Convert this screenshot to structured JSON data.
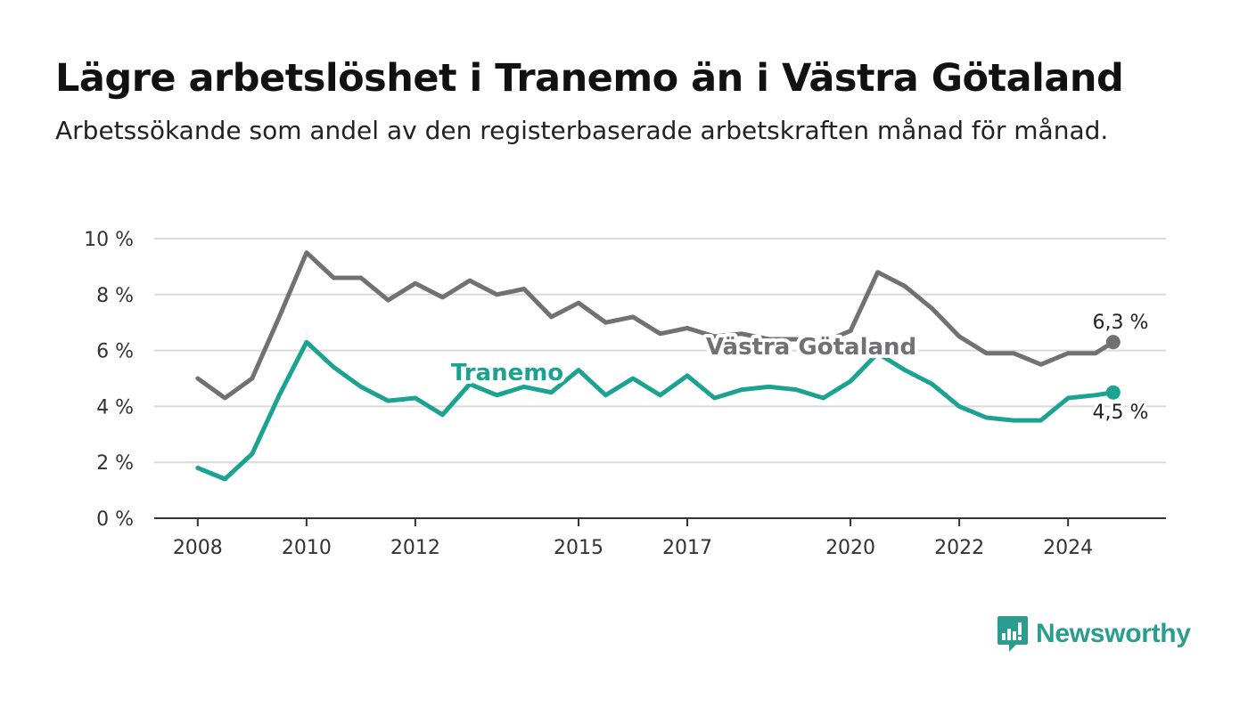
{
  "title": "Lägre arbetslöshet i Tranemo än i Västra Götaland",
  "subtitle": "Arbetssökande som andel av den registerbaserade arbetskraften månad för månad.",
  "brand": {
    "name": "Newsworthy",
    "color": "#2a9d8f",
    "icon": "newsworthy-bar-chart-icon"
  },
  "chart_data": {
    "type": "line",
    "x_unit": "year",
    "y_unit": "%",
    "ylim": [
      0,
      10
    ],
    "xlim": [
      2007.2,
      2025.8
    ],
    "grid": true,
    "y_ticks": [
      {
        "value": 0,
        "label": "0 %"
      },
      {
        "value": 2,
        "label": "2 %"
      },
      {
        "value": 4,
        "label": "4 %"
      },
      {
        "value": 6,
        "label": "6 %"
      },
      {
        "value": 8,
        "label": "8 %"
      },
      {
        "value": 10,
        "label": "10 %"
      }
    ],
    "x_ticks": [
      {
        "value": 2008,
        "label": "2008"
      },
      {
        "value": 2010,
        "label": "2010"
      },
      {
        "value": 2012,
        "label": "2012"
      },
      {
        "value": 2015,
        "label": "2015"
      },
      {
        "value": 2017,
        "label": "2017"
      },
      {
        "value": 2020,
        "label": "2020"
      },
      {
        "value": 2022,
        "label": "2022"
      },
      {
        "value": 2024,
        "label": "2024"
      }
    ],
    "x": [
      2008.0,
      2008.5,
      2009.0,
      2009.5,
      2010.0,
      2010.5,
      2011.0,
      2011.5,
      2012.0,
      2012.5,
      2013.0,
      2013.5,
      2014.0,
      2014.5,
      2015.0,
      2015.5,
      2016.0,
      2016.5,
      2017.0,
      2017.5,
      2018.0,
      2018.5,
      2019.0,
      2019.5,
      2020.0,
      2020.5,
      2021.0,
      2021.5,
      2022.0,
      2022.5,
      2023.0,
      2023.5,
      2024.0,
      2024.5,
      2024.83
    ],
    "series": [
      {
        "name": "Västra Götaland",
        "color": "#707075",
        "end_label": "6,3 %",
        "values": [
          5.0,
          4.3,
          5.0,
          7.2,
          9.5,
          8.6,
          8.6,
          7.8,
          8.4,
          7.9,
          8.5,
          8.0,
          8.2,
          7.2,
          7.7,
          7.0,
          7.2,
          6.6,
          6.8,
          6.5,
          6.6,
          6.4,
          6.4,
          6.3,
          6.7,
          8.8,
          8.3,
          7.5,
          6.5,
          5.9,
          5.9,
          5.5,
          5.9,
          5.9,
          6.3
        ]
      },
      {
        "name": "Tranemo",
        "color": "#1aa391",
        "end_label": "4,5 %",
        "values": [
          1.8,
          1.4,
          2.3,
          4.4,
          6.3,
          5.4,
          4.7,
          4.2,
          4.3,
          3.7,
          4.8,
          4.4,
          4.7,
          4.5,
          5.3,
          4.4,
          5.0,
          4.4,
          5.1,
          4.3,
          4.6,
          4.7,
          4.6,
          4.3,
          4.9,
          5.9,
          5.3,
          4.8,
          4.0,
          3.6,
          3.5,
          3.5,
          4.3,
          4.4,
          4.5
        ]
      }
    ]
  }
}
